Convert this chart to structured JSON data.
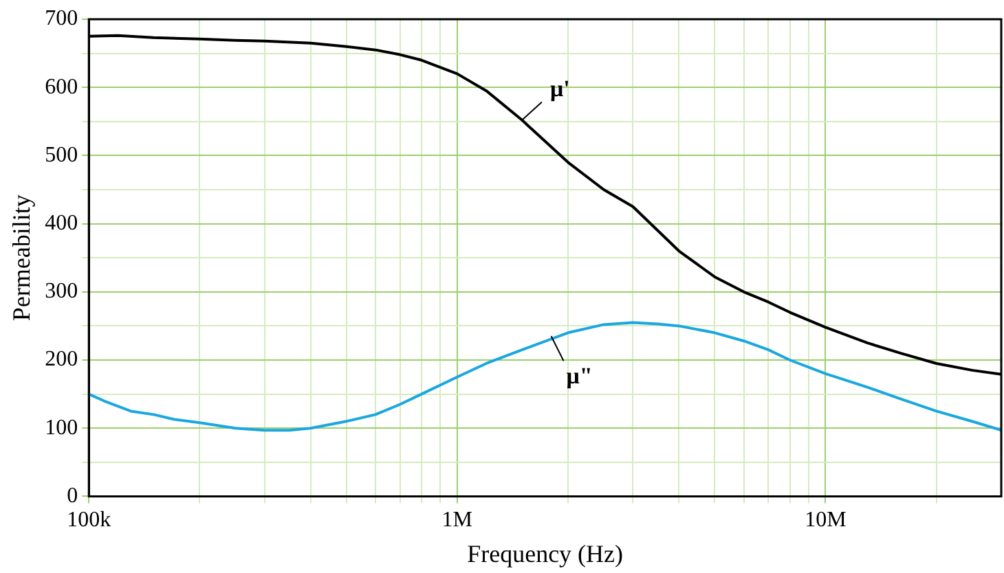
{
  "chart_data": {
    "type": "line",
    "xlabel": "Frequency (Hz)",
    "ylabel": "Permeability",
    "log": "x",
    "grid": true,
    "legend": false,
    "marker": "none",
    "line_style": "solid",
    "xlim": [
      100000,
      30000000
    ],
    "xticks": [
      {
        "value": 100000,
        "label": "100k"
      },
      {
        "value": 200000,
        "label": null
      },
      {
        "value": 300000,
        "label": null
      },
      {
        "value": 400000,
        "label": null
      },
      {
        "value": 500000,
        "label": null
      },
      {
        "value": 600000,
        "label": null
      },
      {
        "value": 700000,
        "label": null
      },
      {
        "value": 800000,
        "label": null
      },
      {
        "value": 900000,
        "label": null
      },
      {
        "value": 1000000,
        "label": "1M"
      },
      {
        "value": 2000000,
        "label": null
      },
      {
        "value": 3000000,
        "label": null
      },
      {
        "value": 4000000,
        "label": null
      },
      {
        "value": 5000000,
        "label": null
      },
      {
        "value": 6000000,
        "label": null
      },
      {
        "value": 7000000,
        "label": null
      },
      {
        "value": 8000000,
        "label": null
      },
      {
        "value": 9000000,
        "label": null
      },
      {
        "value": 10000000,
        "label": "10M"
      },
      {
        "value": 20000000,
        "label": null
      }
    ],
    "ylim": [
      0,
      700
    ],
    "yticks": [
      0,
      {
        "value": 50,
        "label": null
      },
      100,
      {
        "value": 150,
        "label": null
      },
      200,
      {
        "value": 250,
        "label": null
      },
      300,
      {
        "value": 350,
        "label": null
      },
      400,
      {
        "value": 450,
        "label": null
      },
      500,
      {
        "value": 550,
        "label": null
      },
      600,
      {
        "value": 650,
        "label": null
      },
      700
    ],
    "series": [
      {
        "color": "#000000",
        "x": [
          100000,
          120000,
          150000,
          200000,
          250000,
          300000,
          400000,
          500000,
          600000,
          700000,
          800000,
          1000000,
          1200000,
          1500000,
          2000000,
          2500000,
          3000000,
          4000000,
          5000000,
          6000000,
          7000000,
          8000000,
          10000000,
          13000000,
          16000000,
          20000000,
          25000000,
          30000000
        ],
        "values": [
          675,
          676,
          673,
          671,
          669,
          668,
          665,
          660,
          655,
          648,
          640,
          620,
          595,
          552,
          490,
          450,
          425,
          360,
          322,
          300,
          285,
          270,
          248,
          225,
          210,
          195,
          185,
          179
        ]
      },
      {
        "color": "#1aa7e0",
        "x": [
          100000,
          110000,
          130000,
          150000,
          170000,
          200000,
          250000,
          300000,
          350000,
          400000,
          500000,
          600000,
          700000,
          800000,
          1000000,
          1200000,
          1500000,
          2000000,
          2500000,
          3000000,
          3500000,
          4000000,
          5000000,
          6000000,
          7000000,
          8000000,
          10000000,
          13000000,
          16000000,
          20000000,
          25000000,
          30000000
        ],
        "values": [
          150,
          140,
          125,
          120,
          113,
          108,
          100,
          97,
          97,
          100,
          110,
          120,
          135,
          150,
          175,
          195,
          215,
          240,
          252,
          255,
          253,
          250,
          240,
          228,
          215,
          200,
          180,
          160,
          143,
          125,
          110,
          97
        ]
      }
    ],
    "annotations": [
      {
        "text": "μ'",
        "x": 1500000,
        "y": 552
      },
      {
        "text": "μ\"",
        "x": 1800000,
        "y": 235
      }
    ]
  }
}
